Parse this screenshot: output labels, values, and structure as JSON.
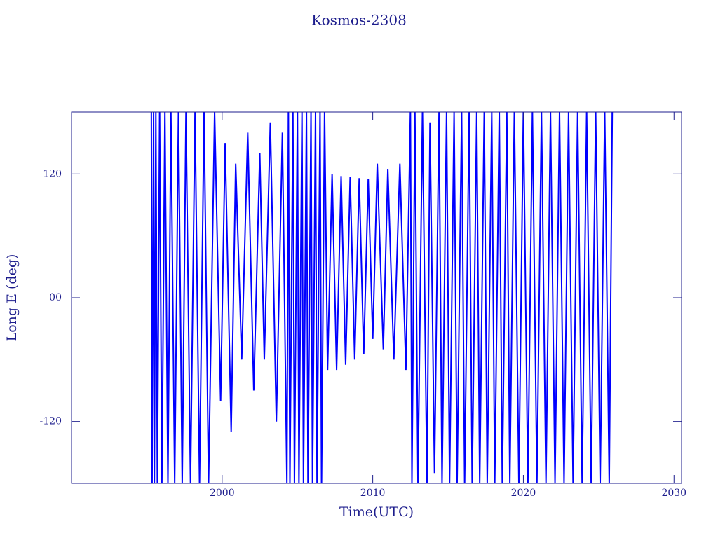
{
  "chart_data": {
    "type": "line",
    "title": "Kosmos-2308",
    "x_label": "Time(UTC)",
    "y_label": "Long E (deg)",
    "xlim": [
      1990,
      2030.5
    ],
    "ylim": [
      -180,
      180
    ],
    "xticks": [
      2000,
      2010,
      2020,
      2030
    ],
    "yticks": [
      -120,
      {
        "value": 0,
        "label": "00"
      },
      120
    ],
    "series": [
      {
        "color": "#0000ff",
        "x": [
          1995.3,
          1995.35,
          1995.45,
          1995.5,
          1995.6,
          1995.7,
          1995.85,
          1996.0,
          1996.2,
          1996.4,
          1996.6,
          1996.85,
          1997.1,
          1997.35,
          1997.6,
          1997.9,
          1998.2,
          1998.5,
          1998.8,
          1999.1,
          1999.5,
          1999.9,
          2000.2,
          2000.6,
          2000.9,
          2001.3,
          2001.7,
          2002.1,
          2002.5,
          2002.8,
          2003.2,
          2003.6,
          2004.0,
          2004.3,
          2004.4,
          2004.5,
          2004.7,
          2004.8,
          2005.0,
          2005.1,
          2005.3,
          2005.4,
          2005.6,
          2005.7,
          2005.9,
          2006.0,
          2006.2,
          2006.3,
          2006.5,
          2006.6,
          2006.8,
          2007.0,
          2007.3,
          2007.6,
          2007.9,
          2008.2,
          2008.5,
          2008.8,
          2009.1,
          2009.4,
          2009.7,
          2010.0,
          2010.3,
          2010.7,
          2011.0,
          2011.4,
          2011.8,
          2012.2,
          2012.5,
          2012.6,
          2012.8,
          2013.0,
          2013.3,
          2013.6,
          2013.8,
          2014.1,
          2014.4,
          2014.6,
          2014.9,
          2015.1,
          2015.4,
          2015.6,
          2015.9,
          2016.1,
          2016.4,
          2016.6,
          2016.9,
          2017.1,
          2017.4,
          2017.6,
          2017.9,
          2018.1,
          2018.4,
          2018.6,
          2018.9,
          2019.1,
          2019.4,
          2019.7,
          2020.0,
          2020.3,
          2020.6,
          2020.9,
          2021.2,
          2021.5,
          2021.8,
          2022.1,
          2022.4,
          2022.7,
          2023.0,
          2023.3,
          2023.6,
          2023.9,
          2024.2,
          2024.5,
          2024.8,
          2025.1,
          2025.4,
          2025.7,
          2025.9
        ],
        "values": [
          180,
          -180,
          180,
          -180,
          180,
          -180,
          180,
          -180,
          180,
          -180,
          180,
          -180,
          180,
          -180,
          180,
          -180,
          180,
          -180,
          180,
          -180,
          180,
          -100,
          150,
          -130,
          130,
          -60,
          160,
          -90,
          140,
          -60,
          170,
          -120,
          160,
          -180,
          180,
          -180,
          180,
          -180,
          180,
          -180,
          180,
          -180,
          180,
          -180,
          180,
          -180,
          180,
          -180,
          180,
          -180,
          180,
          -70,
          120,
          -70,
          118,
          -65,
          117,
          -60,
          116,
          -55,
          115,
          -40,
          130,
          -50,
          125,
          -60,
          130,
          -70,
          180,
          -180,
          180,
          -180,
          180,
          -180,
          170,
          -170,
          180,
          -180,
          180,
          -180,
          180,
          -180,
          180,
          -180,
          180,
          -180,
          180,
          -180,
          180,
          -180,
          180,
          -180,
          180,
          -180,
          180,
          -180,
          180,
          -180,
          180,
          -180,
          180,
          -180,
          180,
          -180,
          180,
          -180,
          180,
          -180,
          180,
          -180,
          180,
          -180,
          180,
          -180,
          180,
          -180,
          180,
          -180,
          180
        ]
      }
    ]
  }
}
